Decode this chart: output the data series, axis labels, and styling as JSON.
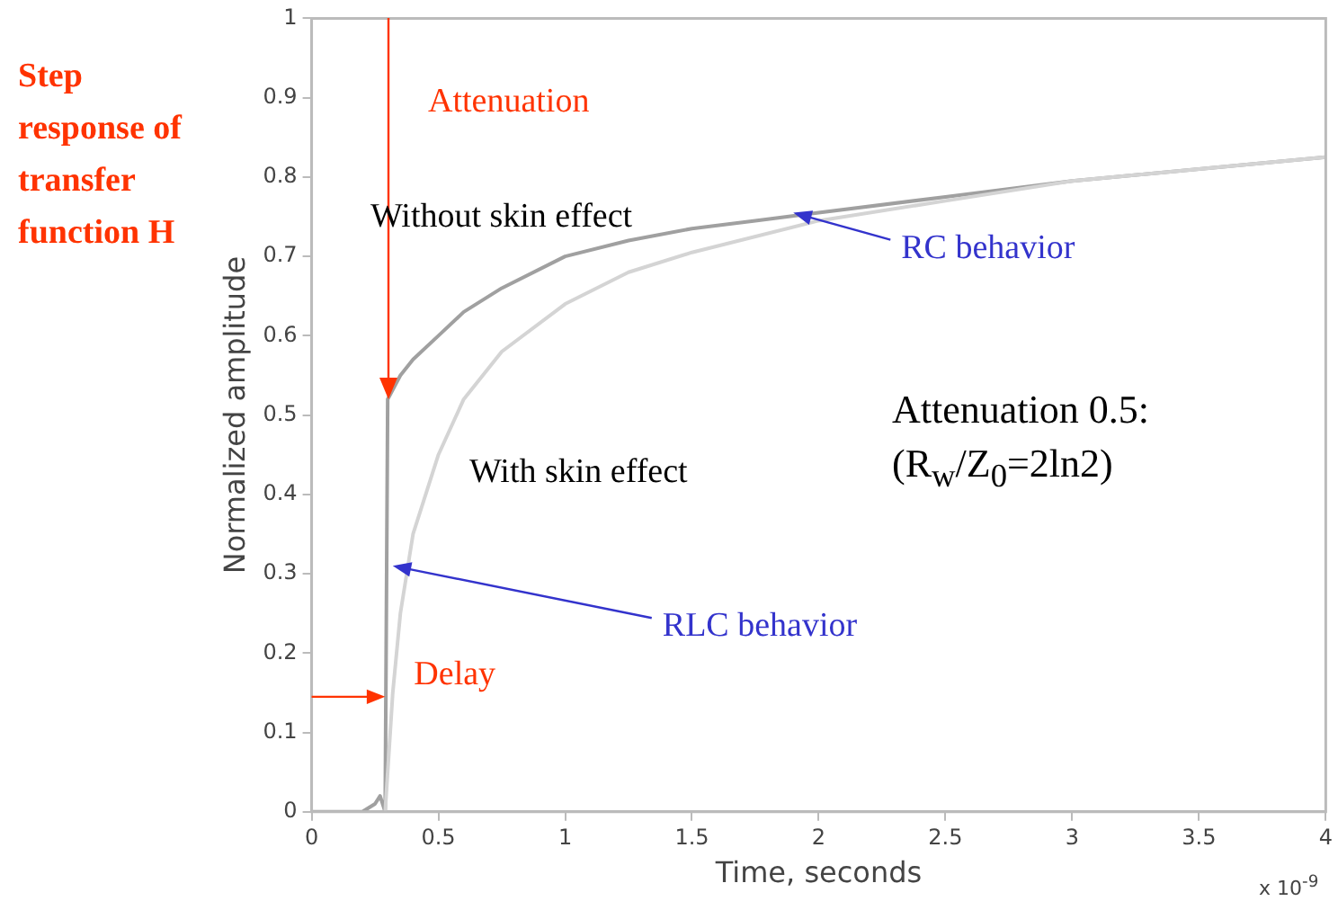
{
  "chart_data": {
    "type": "line",
    "title": "Step response of transfer function H",
    "xlabel": "Time, seconds",
    "ylabel": "Normalized amplitude",
    "xlim": [
      0,
      4
    ],
    "xticks": [
      0,
      0.5,
      1,
      1.5,
      2,
      2.5,
      3,
      3.5,
      4
    ],
    "ylim": [
      0,
      1
    ],
    "yticks": [
      0,
      0.1,
      0.2,
      0.3,
      0.4,
      0.5,
      0.6,
      0.7,
      0.8,
      0.9,
      1
    ],
    "grid": false,
    "legend": false,
    "marker": "none",
    "line_style": "solid",
    "series": [
      {
        "color": "#d4d4d4",
        "x": [
          0.29,
          0.3,
          0.32,
          0.35,
          0.4,
          0.5,
          0.6,
          0.75,
          1,
          1.25,
          1.5,
          2,
          2.5,
          3,
          3.5,
          4
        ],
        "values": [
          0,
          0.05,
          0.15,
          0.25,
          0.35,
          0.45,
          0.52,
          0.58,
          0.64,
          0.68,
          0.705,
          0.745,
          0.77,
          0.795,
          0.81,
          0.825
        ]
      },
      {
        "color": "#a0a0a0",
        "x": [
          0,
          0.1,
          0.2,
          0.25,
          0.27,
          0.29,
          0.3,
          0.35,
          0.4,
          0.5,
          0.6,
          0.75,
          1,
          1.25,
          1.5,
          1.75,
          2,
          2.5,
          3,
          3.5,
          4
        ],
        "values": [
          0,
          0,
          0,
          0.01,
          0.02,
          0,
          0.52,
          0.55,
          0.57,
          0.6,
          0.63,
          0.66,
          0.7,
          0.72,
          0.735,
          0.745,
          0.755,
          0.775,
          0.795,
          0.81,
          0.825
        ]
      }
    ],
    "annotations": [
      "Attenuation",
      "Without skin effect",
      {
        "text": "RC behavior",
        "x": 1.9,
        "y": 0.755
      },
      "Attenuation 0.5:",
      "(R$_{w}$/Z$_{0}$=2ln2)",
      "With skin effect",
      {
        "text": "RLC behavior",
        "x": 0.32,
        "y": 0.31
      },
      {
        "text": "Delay",
        "x": 0.29,
        "y": 0.145
      },
      "x 10$^{-9}$"
    ]
  }
}
